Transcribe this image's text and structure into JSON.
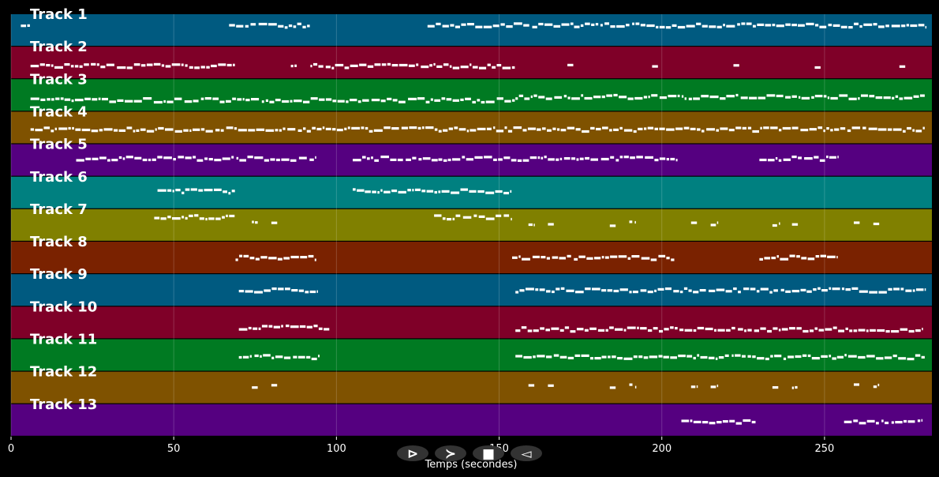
{
  "chart_data": {
    "type": "piano-roll",
    "xlabel": "Temps (secondes)",
    "xlim": [
      0,
      283
    ],
    "x_ticks": [
      0,
      50,
      100,
      150,
      200,
      250
    ],
    "grid": true,
    "tracks": [
      {
        "name": "Track 1",
        "color": "#005a80",
        "segments": [
          [
            3,
            6,
            0.35
          ],
          [
            67,
            92,
            0.35
          ],
          [
            128,
            281,
            0.35
          ]
        ]
      },
      {
        "name": "Track 2",
        "color": "#7f0028",
        "segments": [
          [
            6,
            69,
            0.6
          ],
          [
            86,
            88,
            0.6
          ],
          [
            92,
            155,
            0.6
          ],
          [
            171,
            173,
            0.6
          ],
          [
            197,
            199,
            0.6
          ],
          [
            222,
            224,
            0.6
          ],
          [
            247,
            249,
            0.6
          ],
          [
            273,
            275,
            0.6
          ]
        ]
      },
      {
        "name": "Track 3",
        "color": "#007a22",
        "segments": [
          [
            6,
            155,
            0.65
          ],
          [
            155,
            281,
            0.55
          ]
        ]
      },
      {
        "name": "Track 4",
        "color": "#7f5200",
        "segments": [
          [
            6,
            281,
            0.55
          ]
        ]
      },
      {
        "name": "Track 5",
        "color": "#550080",
        "segments": [
          [
            20,
            94,
            0.45
          ],
          [
            105,
            205,
            0.45
          ],
          [
            230,
            254,
            0.45
          ]
        ]
      },
      {
        "name": "Track 6",
        "color": "#008080",
        "segments": [
          [
            45,
            69,
            0.45
          ],
          [
            105,
            154,
            0.45
          ]
        ]
      },
      {
        "name": "Track 7",
        "color": "#808000",
        "segments": [
          [
            44,
            69,
            0.25
          ],
          [
            74,
            76,
            0.45
          ],
          [
            80,
            82,
            0.45
          ],
          [
            130,
            154,
            0.25
          ],
          [
            159,
            161,
            0.45
          ],
          [
            165,
            167,
            0.45
          ],
          [
            184,
            186,
            0.45
          ],
          [
            190,
            192,
            0.45
          ],
          [
            209,
            211,
            0.45
          ],
          [
            215,
            217,
            0.45
          ],
          [
            234,
            236,
            0.45
          ],
          [
            240,
            242,
            0.45
          ],
          [
            259,
            261,
            0.45
          ],
          [
            265,
            267,
            0.45
          ]
        ]
      },
      {
        "name": "Track 8",
        "color": "#7a2200",
        "segments": [
          [
            69,
            94,
            0.5
          ],
          [
            154,
            204,
            0.5
          ],
          [
            230,
            254,
            0.5
          ]
        ]
      },
      {
        "name": "Track 9",
        "color": "#005a80",
        "segments": [
          [
            70,
            94,
            0.5
          ],
          [
            155,
            281,
            0.5
          ]
        ]
      },
      {
        "name": "Track 10",
        "color": "#7f0028",
        "segments": [
          [
            70,
            98,
            0.65
          ],
          [
            155,
            280,
            0.7
          ]
        ]
      },
      {
        "name": "Track 11",
        "color": "#007a22",
        "segments": [
          [
            70,
            95,
            0.55
          ],
          [
            155,
            281,
            0.55
          ]
        ]
      },
      {
        "name": "Track 12",
        "color": "#7f5200",
        "segments": [
          [
            74,
            76,
            0.45
          ],
          [
            80,
            82,
            0.45
          ],
          [
            159,
            161,
            0.45
          ],
          [
            165,
            167,
            0.45
          ],
          [
            184,
            186,
            0.45
          ],
          [
            190,
            192,
            0.45
          ],
          [
            209,
            211,
            0.45
          ],
          [
            215,
            217,
            0.45
          ],
          [
            234,
            236,
            0.45
          ],
          [
            240,
            242,
            0.45
          ],
          [
            259,
            261,
            0.45
          ],
          [
            265,
            267,
            0.45
          ]
        ]
      },
      {
        "name": "Track 13",
        "color": "#550080",
        "segments": [
          [
            206,
            229,
            0.55
          ],
          [
            256,
            280,
            0.55
          ]
        ]
      }
    ]
  },
  "controls": [
    {
      "name": "play-icon",
      "glyph": "⊳"
    },
    {
      "name": "forward-icon",
      "glyph": "≻"
    },
    {
      "name": "stop-icon",
      "glyph": "■"
    },
    {
      "name": "rewind-icon",
      "glyph": "◅"
    }
  ]
}
